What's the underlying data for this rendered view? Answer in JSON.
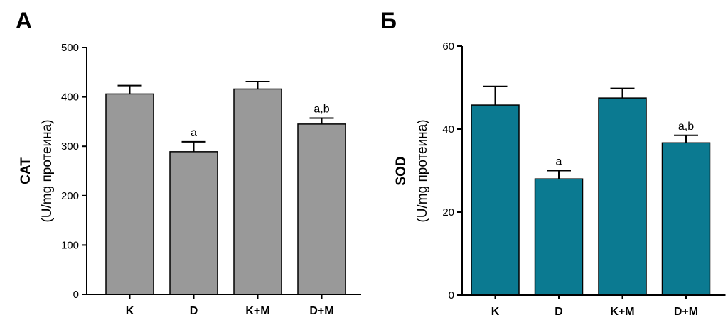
{
  "chart_data": [
    {
      "type": "bar",
      "panel_label": "A",
      "ylabel": "CAT",
      "ylabel_unit": "(U/mg протеина)",
      "categories": [
        "K",
        "D",
        "K+M",
        "D+M"
      ],
      "values": [
        406,
        289,
        416,
        345
      ],
      "errors": [
        17,
        20,
        15,
        12
      ],
      "annotations": [
        "",
        "a",
        "",
        "a,b"
      ],
      "ylim": [
        0,
        500
      ],
      "yticks": [
        0,
        100,
        200,
        300,
        400,
        500
      ],
      "bar_color": "#999999",
      "grid": false
    },
    {
      "type": "bar",
      "panel_label": "Б",
      "ylabel": "SOD",
      "ylabel_unit": "(U/mg протеина)",
      "categories": [
        "K",
        "D",
        "K+M",
        "D+M"
      ],
      "values": [
        45.8,
        28.0,
        47.5,
        36.7
      ],
      "errors": [
        4.5,
        2.0,
        2.3,
        1.8
      ],
      "annotations": [
        "",
        "a",
        "",
        "a,b"
      ],
      "ylim": [
        0,
        60
      ],
      "yticks": [
        0,
        20,
        40,
        60
      ],
      "bar_color": "#0b7a91",
      "grid": false
    }
  ]
}
